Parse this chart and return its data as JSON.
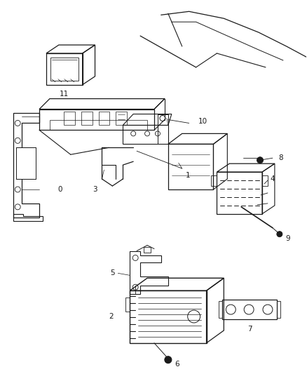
{
  "background_color": "#ffffff",
  "line_color": "#1a1a1a",
  "fig_width": 4.38,
  "fig_height": 5.33,
  "dpi": 100,
  "label_fs": 7.5,
  "lw_main": 0.8,
  "lw_thin": 0.5,
  "lw_thick": 1.0
}
